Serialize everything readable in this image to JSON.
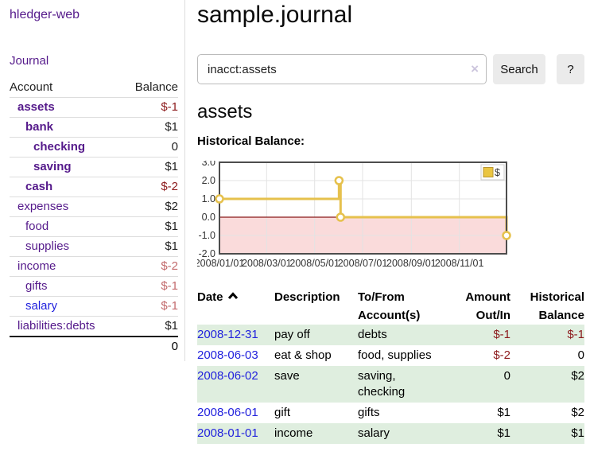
{
  "app": {
    "brand": "hledger-web"
  },
  "nav": {
    "journal": "Journal"
  },
  "sidebar": {
    "table": {
      "headers": {
        "account": "Account",
        "balance": "Balance"
      },
      "rows": [
        {
          "account": "assets",
          "balance": "$-1"
        },
        {
          "account": "bank",
          "balance": "$1"
        },
        {
          "account": "checking",
          "balance": "0"
        },
        {
          "account": "saving",
          "balance": "$1"
        },
        {
          "account": "cash",
          "balance": "$-2"
        },
        {
          "account": "expenses",
          "balance": "$2"
        },
        {
          "account": "food",
          "balance": "$1"
        },
        {
          "account": "supplies",
          "balance": "$1"
        },
        {
          "account": "income",
          "balance": "$-2"
        },
        {
          "account": "gifts",
          "balance": "$-1"
        },
        {
          "account": "salary",
          "balance": "$-1"
        },
        {
          "account": "liabilities:debts",
          "balance": "$1"
        }
      ],
      "total": "0"
    }
  },
  "main": {
    "title": "sample.journal",
    "search": {
      "value": "inacct:assets",
      "clear_icon": "×",
      "search_button": "Search",
      "help_button": "?"
    },
    "account_heading": "assets",
    "section_label": "Historical Balance:"
  },
  "chart_data": {
    "type": "line",
    "step": true,
    "title": "Historical Balance:",
    "series": [
      {
        "name": "$",
        "points": [
          [
            "2008-01-01",
            1
          ],
          [
            "2008-06-01",
            2
          ],
          [
            "2008-06-03",
            0
          ],
          [
            "2008-12-31",
            -1
          ]
        ]
      }
    ],
    "x_ticks": [
      "2008/01/01",
      "2008/03/01",
      "2008/05/01",
      "2008/07/01",
      "2008/09/01",
      "2008/11/01"
    ],
    "y_ticks": [
      "3.0",
      "2.0",
      "1.0",
      "0.0",
      "-1.0",
      "-2.0"
    ],
    "ylim": [
      -2,
      3
    ],
    "xlim": [
      "2008-01-01",
      "2008-12-31"
    ],
    "grid": true,
    "legend": {
      "label": "$",
      "position": "top-right"
    },
    "colors": {
      "series": "#e6c14d",
      "legend_square": "#eac541",
      "legend_square_border": "#b89530",
      "negative_fill": "#fadbdb",
      "zero_line": "#8b1a1a",
      "grid": "#e3e3e3",
      "border": "#4d4d4d"
    }
  },
  "register": {
    "headers": {
      "date": "Date",
      "description": "Description",
      "account": "To/From Account(s)",
      "amount": "Amount Out/In",
      "balance": "Historical Balance"
    },
    "rows": [
      {
        "date": "2008-12-31",
        "description": "pay off",
        "accounts": "debts",
        "amount": "$-1",
        "balance": "$-1"
      },
      {
        "date": "2008-06-03",
        "description": "eat & shop",
        "accounts": "food, supplies",
        "amount": "$-2",
        "balance": "0"
      },
      {
        "date": "2008-06-02",
        "description": "save",
        "accounts": "saving, checking",
        "amount": "0",
        "balance": "$2"
      },
      {
        "date": "2008-06-01",
        "description": "gift",
        "accounts": "gifts",
        "amount": "$1",
        "balance": "$2"
      },
      {
        "date": "2008-01-01",
        "description": "income",
        "accounts": "salary",
        "amount": "$1",
        "balance": "$1"
      }
    ]
  }
}
